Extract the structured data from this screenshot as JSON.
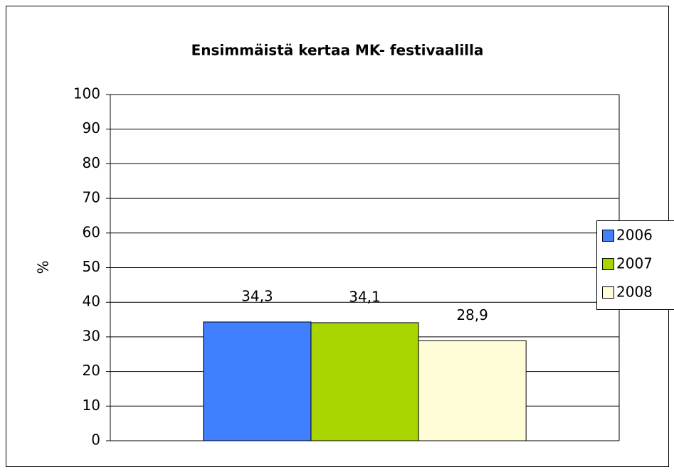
{
  "chart_data": {
    "type": "bar",
    "title": "Ensimmäistä kertaa MK- festivaalilla",
    "y_label": "%",
    "categories": [
      null
    ],
    "series": [
      {
        "name": "2006",
        "color": "#4080ff",
        "values": [
          34.3
        ],
        "value_labels": [
          "34,3"
        ]
      },
      {
        "name": "2007",
        "color": "#a8d400",
        "values": [
          34.1
        ],
        "value_labels": [
          "34,1"
        ]
      },
      {
        "name": "2008",
        "color": "#fffcd8",
        "values": [
          28.9
        ],
        "value_labels": [
          "28,9"
        ]
      }
    ],
    "ylim": [
      0,
      100
    ],
    "yticks": [
      0,
      10,
      20,
      30,
      40,
      50,
      60,
      70,
      80,
      90,
      100
    ],
    "grid": true,
    "legend": "right"
  }
}
